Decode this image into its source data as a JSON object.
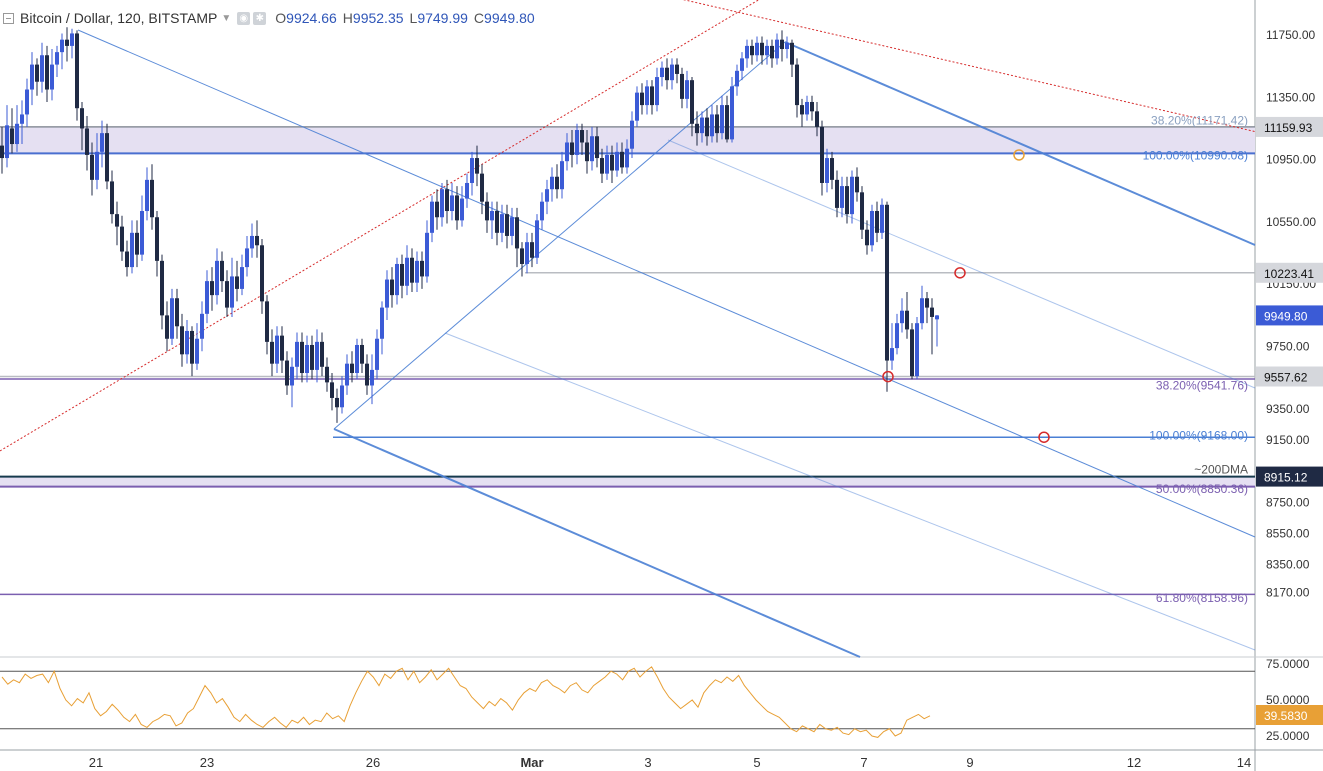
{
  "header": {
    "symbol": "Bitcoin / Dollar, 120, BITSTAMP",
    "ohlc": [
      {
        "k": "O",
        "v": "9924.66"
      },
      {
        "k": "H",
        "v": "9952.35"
      },
      {
        "k": "L",
        "v": "9749.99"
      },
      {
        "k": "C",
        "v": "9949.80"
      }
    ]
  },
  "colors": {
    "up": "#3b5bd6",
    "down": "#1f2a44",
    "pitchfork": "#4a7fd4",
    "fib": "#7b5fb0",
    "dotted": "#d62b2b",
    "rsi": "#e8a036",
    "zone": "#e5e0f2",
    "ma": "#163a4d"
  },
  "chart_data": {
    "type": "candlestick",
    "x_ticks": [
      "21",
      "23",
      "26",
      "Mar",
      "3",
      "5",
      "7",
      "9",
      "12",
      "14"
    ],
    "y_ticks": [
      "11750.00",
      "11350.00",
      "10950.00",
      "10550.00",
      "10150.00",
      "9750.00",
      "9350.00",
      "9150.00",
      "8750.00",
      "8550.00",
      "8350.00",
      "8170.00"
    ],
    "y_range": [
      7900,
      11950
    ],
    "price_tags": [
      {
        "label": "11159.93",
        "price": 11159.93,
        "style": "gray"
      },
      {
        "label": "10223.41",
        "price": 10223.41,
        "style": "gray"
      },
      {
        "label": "9949.80",
        "price": 9949.8,
        "style": "blue"
      },
      {
        "label": "9557.62",
        "price": 9557.62,
        "style": "gray"
      },
      {
        "label": "8915.12",
        "price": 8915.12,
        "style": "dark"
      }
    ],
    "annotations": [
      {
        "text": "38.20%(11171.42)",
        "price": 11200,
        "color": "#8aa0c0"
      },
      {
        "text": "100.00%(10990.08)",
        "price": 10975,
        "color": "#4a7fd4"
      },
      {
        "text": "38.20%(9541.76)",
        "price": 9500,
        "color": "#7b5fb0"
      },
      {
        "text": "100.00%(9168.00)",
        "price": 9180,
        "color": "#4a7fd4"
      },
      {
        "text": "~200DMA",
        "price": 8960,
        "color": "#555"
      },
      {
        "text": "50.00%(8850.36)",
        "price": 8835,
        "color": "#7b5fb0"
      },
      {
        "text": "61.80%(8158.96)",
        "price": 8135,
        "color": "#7b5fb0"
      }
    ],
    "rsi": {
      "y_ticks": [
        "75.0000",
        "50.0000",
        "25.0000"
      ],
      "current": "39.5830"
    }
  }
}
